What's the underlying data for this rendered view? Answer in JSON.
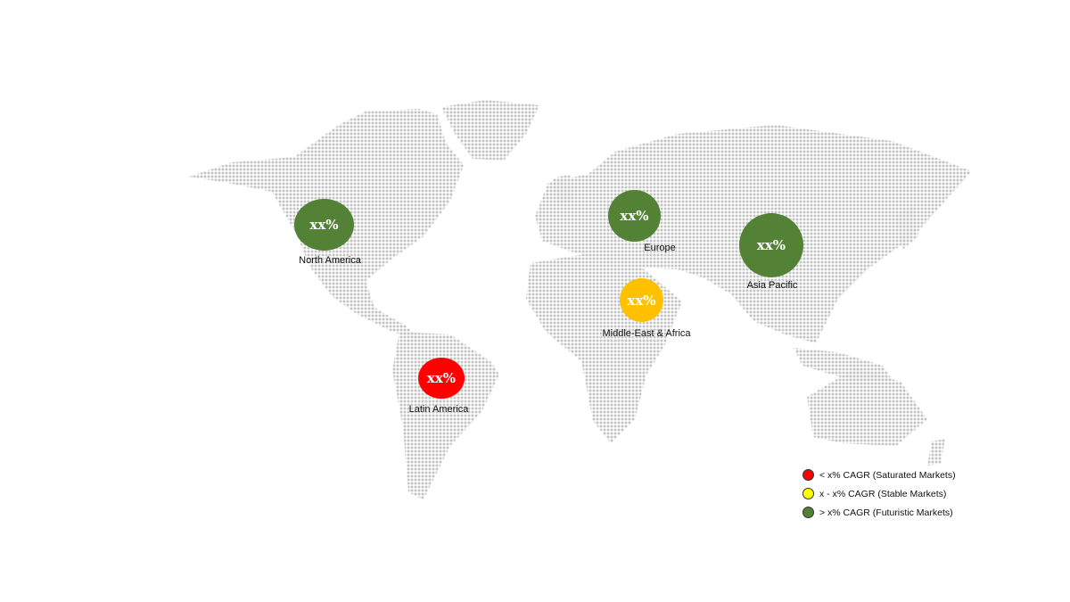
{
  "regions": [
    {
      "name": "North America",
      "value": "xx%",
      "color": "#538135"
    },
    {
      "name": "Europe",
      "value": "xx%",
      "color": "#538135"
    },
    {
      "name": "Asia Pacific",
      "value": "xx%",
      "color": "#538135"
    },
    {
      "name": "Middle-East & Africa",
      "value": "xx%",
      "color": "#ffc000"
    },
    {
      "name": "Latin America",
      "value": "xx%",
      "color": "#ff0000"
    }
  ],
  "legend": [
    {
      "label": "< x% CAGR (Saturated Markets)",
      "color": "#ff0000"
    },
    {
      "label": "x - x% CAGR (Stable Markets)",
      "color": "#ffff00"
    },
    {
      "label": "> x% CAGR (Futuristic Markets)",
      "color": "#538135"
    }
  ],
  "map_dot_color": "#c8c8c8"
}
